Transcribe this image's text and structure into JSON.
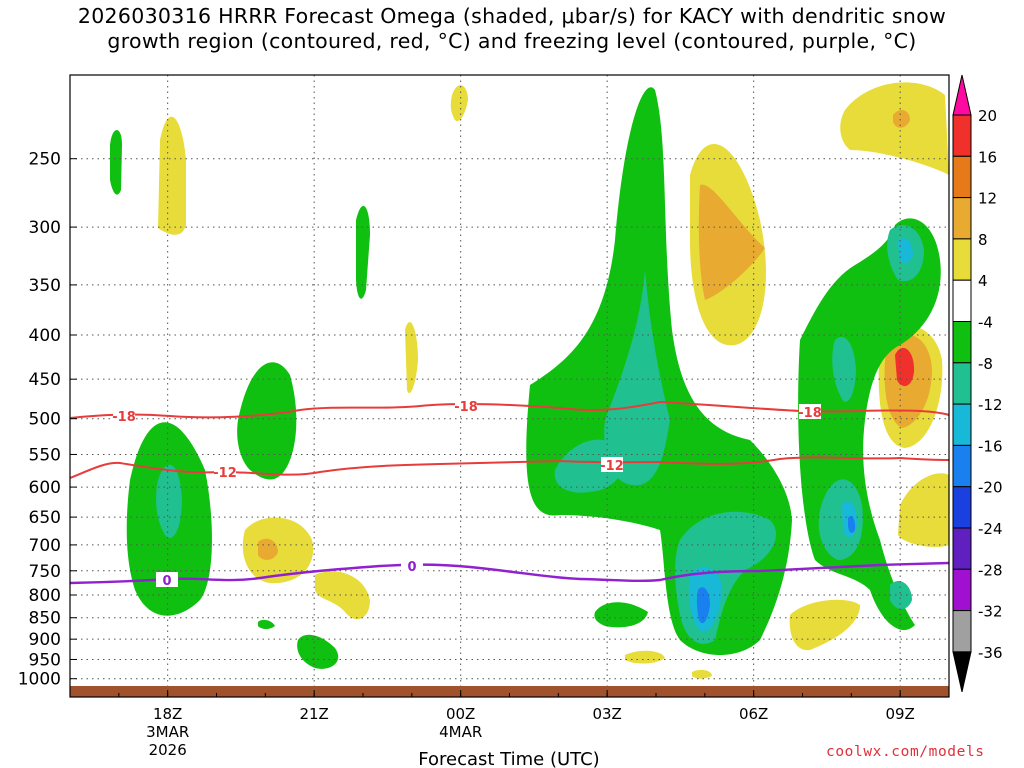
{
  "title_line1": "2026030316 HRRR Forecast Omega (shaded, μbar/s) for KACY with dendritic snow",
  "title_line2": "growth region (contoured, red, °C) and freezing level (contoured, purple, °C)",
  "credit": "coolwx.com/models",
  "chart_data": {
    "type": "heatmap",
    "xlabel": "Forecast Time (UTC)",
    "ylabel": "",
    "x_ticks": [
      {
        "label": "18Z",
        "sub1": "3MAR",
        "sub2": "2026",
        "hour": 2
      },
      {
        "label": "21Z",
        "sub1": "",
        "sub2": "",
        "hour": 5
      },
      {
        "label": "00Z",
        "sub1": "4MAR",
        "sub2": "",
        "hour": 8
      },
      {
        "label": "03Z",
        "sub1": "",
        "sub2": "",
        "hour": 11
      },
      {
        "label": "06Z",
        "sub1": "",
        "sub2": "",
        "hour": 14
      },
      {
        "label": "09Z",
        "sub1": "",
        "sub2": "",
        "hour": 17
      }
    ],
    "xlim_hours": [
      0,
      18
    ],
    "y_ticks": [
      "250",
      "300",
      "350",
      "400",
      "450",
      "500",
      "550",
      "600",
      "650",
      "700",
      "750",
      "800",
      "850",
      "900",
      "950",
      "1000"
    ],
    "ylim": [
      1050,
      200
    ],
    "y_scale": "log-pressure",
    "colorbar": {
      "labels": [
        "20",
        "16",
        "12",
        "8",
        "4",
        "-4",
        "-8",
        "-12",
        "-16",
        "-20",
        "-24",
        "-28",
        "-32",
        "-36"
      ],
      "colors": [
        "#ff0aa0",
        "#f0302a",
        "#e67a1a",
        "#e8aa30",
        "#e8dc3a",
        "#ffffff",
        "#10c010",
        "#20c090",
        "#18b8d8",
        "#1a80f0",
        "#1a40e0",
        "#6020c0",
        "#a010d0",
        "#a0a0a0",
        "#000000"
      ]
    },
    "contours": [
      {
        "name": "-18",
        "color": "#e83c3c"
      },
      {
        "name": "-12",
        "color": "#e83c3c"
      },
      {
        "name": "0",
        "color": "#9020d0"
      }
    ],
    "grid": true
  }
}
